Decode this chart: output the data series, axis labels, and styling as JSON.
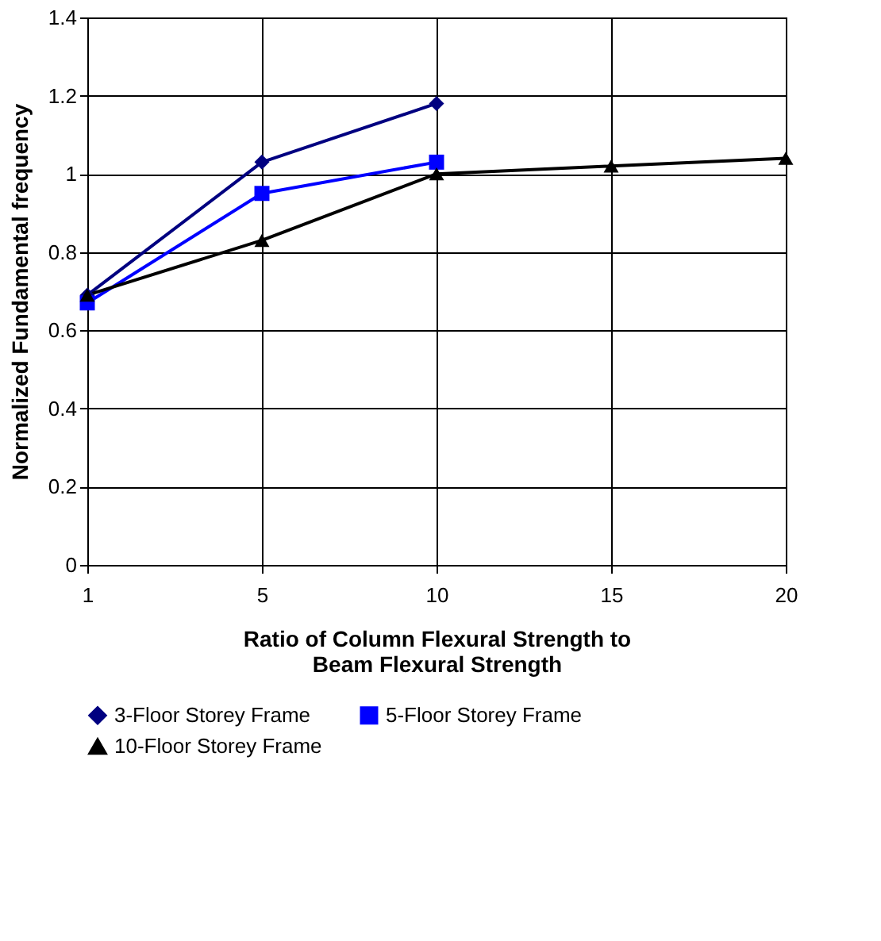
{
  "chart_data": {
    "type": "line",
    "xlabel": "Ratio of Column Flexural Strength to Beam Flexural Strength",
    "ylabel": "Normalized Fundamental frequency",
    "categories": [
      "1",
      "5",
      "10",
      "15",
      "20"
    ],
    "series": [
      {
        "name": "3-Floor Storey Frame",
        "color": "#000080",
        "marker": "diamond",
        "values": [
          0.69,
          1.03,
          1.18,
          null,
          null
        ]
      },
      {
        "name": "5-Floor Storey Frame",
        "color": "#0000ff",
        "marker": "square",
        "values": [
          0.67,
          0.95,
          1.03,
          null,
          null
        ]
      },
      {
        "name": "10-Floor Storey Frame",
        "color": "#000000",
        "marker": "triangle",
        "values": [
          0.69,
          0.83,
          1.0,
          1.02,
          1.04
        ]
      }
    ],
    "ylim": [
      0,
      1.4
    ],
    "yticks": [
      0,
      0.2,
      0.4,
      0.6,
      0.8,
      1,
      1.2,
      1.4
    ],
    "grid": true,
    "legend": "bottom"
  }
}
